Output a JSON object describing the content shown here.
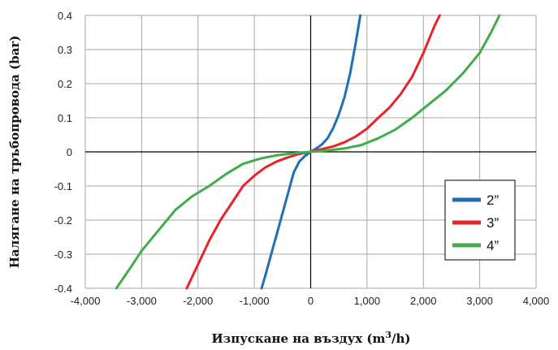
{
  "chart_data": {
    "type": "line",
    "title": "",
    "xlabel": "Изпускане на въздух (m³/h)",
    "xlabel_main": "Изпускане на въздух (m",
    "xlabel_sup": "3",
    "xlabel_end": "/h)",
    "ylabel": "Налягане на тръбопровода (bar)",
    "xlim": [
      -4000,
      4000
    ],
    "ylim": [
      -0.4,
      0.4
    ],
    "x_ticks": [
      -4000,
      -3000,
      -2000,
      -1000,
      0,
      1000,
      2000,
      3000,
      4000
    ],
    "x_tick_labels": [
      "-4,000",
      "-3,000",
      "-2,000",
      "-1,000",
      "0",
      "1,000",
      "2,000",
      "3,000",
      "4,000"
    ],
    "y_ticks": [
      -0.4,
      -0.3,
      -0.2,
      -0.1,
      0,
      0.1,
      0.2,
      0.3,
      0.4
    ],
    "y_tick_labels": [
      "-0.4",
      "-0.3",
      "-0.2",
      "-0.1",
      "0",
      "0.1",
      "0.2",
      "0.3",
      "0.4"
    ],
    "grid": true,
    "legend_position": "right",
    "series": [
      {
        "name": "2”",
        "color": "#1f6fb4",
        "points": [
          [
            -870,
            -0.4
          ],
          [
            -800,
            -0.36
          ],
          [
            -700,
            -0.3
          ],
          [
            -600,
            -0.24
          ],
          [
            -500,
            -0.18
          ],
          [
            -400,
            -0.12
          ],
          [
            -300,
            -0.06
          ],
          [
            -200,
            -0.028
          ],
          [
            -100,
            -0.012
          ],
          [
            0,
            0
          ],
          [
            100,
            0.01
          ],
          [
            200,
            0.022
          ],
          [
            300,
            0.04
          ],
          [
            400,
            0.07
          ],
          [
            500,
            0.11
          ],
          [
            600,
            0.16
          ],
          [
            700,
            0.23
          ],
          [
            800,
            0.32
          ],
          [
            880,
            0.4
          ]
        ]
      },
      {
        "name": "3”",
        "color": "#e8232a",
        "points": [
          [
            -2200,
            -0.4
          ],
          [
            -2000,
            -0.33
          ],
          [
            -1800,
            -0.26
          ],
          [
            -1600,
            -0.2
          ],
          [
            -1400,
            -0.15
          ],
          [
            -1200,
            -0.1
          ],
          [
            -1000,
            -0.07
          ],
          [
            -800,
            -0.045
          ],
          [
            -600,
            -0.028
          ],
          [
            -400,
            -0.016
          ],
          [
            -200,
            -0.006
          ],
          [
            0,
            0
          ],
          [
            200,
            0.008
          ],
          [
            400,
            0.016
          ],
          [
            600,
            0.028
          ],
          [
            800,
            0.045
          ],
          [
            1000,
            0.068
          ],
          [
            1200,
            0.1
          ],
          [
            1400,
            0.13
          ],
          [
            1600,
            0.17
          ],
          [
            1800,
            0.22
          ],
          [
            2000,
            0.29
          ],
          [
            2200,
            0.37
          ],
          [
            2290,
            0.4
          ]
        ]
      },
      {
        "name": "4”",
        "color": "#3fae49",
        "points": [
          [
            -3450,
            -0.4
          ],
          [
            -3200,
            -0.34
          ],
          [
            -3000,
            -0.29
          ],
          [
            -2700,
            -0.23
          ],
          [
            -2400,
            -0.17
          ],
          [
            -2100,
            -0.13
          ],
          [
            -1800,
            -0.1
          ],
          [
            -1500,
            -0.065
          ],
          [
            -1200,
            -0.035
          ],
          [
            -900,
            -0.02
          ],
          [
            -600,
            -0.01
          ],
          [
            -300,
            -0.004
          ],
          [
            0,
            0
          ],
          [
            300,
            0.004
          ],
          [
            600,
            0.01
          ],
          [
            900,
            0.02
          ],
          [
            1200,
            0.04
          ],
          [
            1500,
            0.065
          ],
          [
            1800,
            0.1
          ],
          [
            2100,
            0.14
          ],
          [
            2400,
            0.18
          ],
          [
            2700,
            0.23
          ],
          [
            3000,
            0.29
          ],
          [
            3200,
            0.35
          ],
          [
            3350,
            0.4
          ]
        ]
      }
    ]
  }
}
